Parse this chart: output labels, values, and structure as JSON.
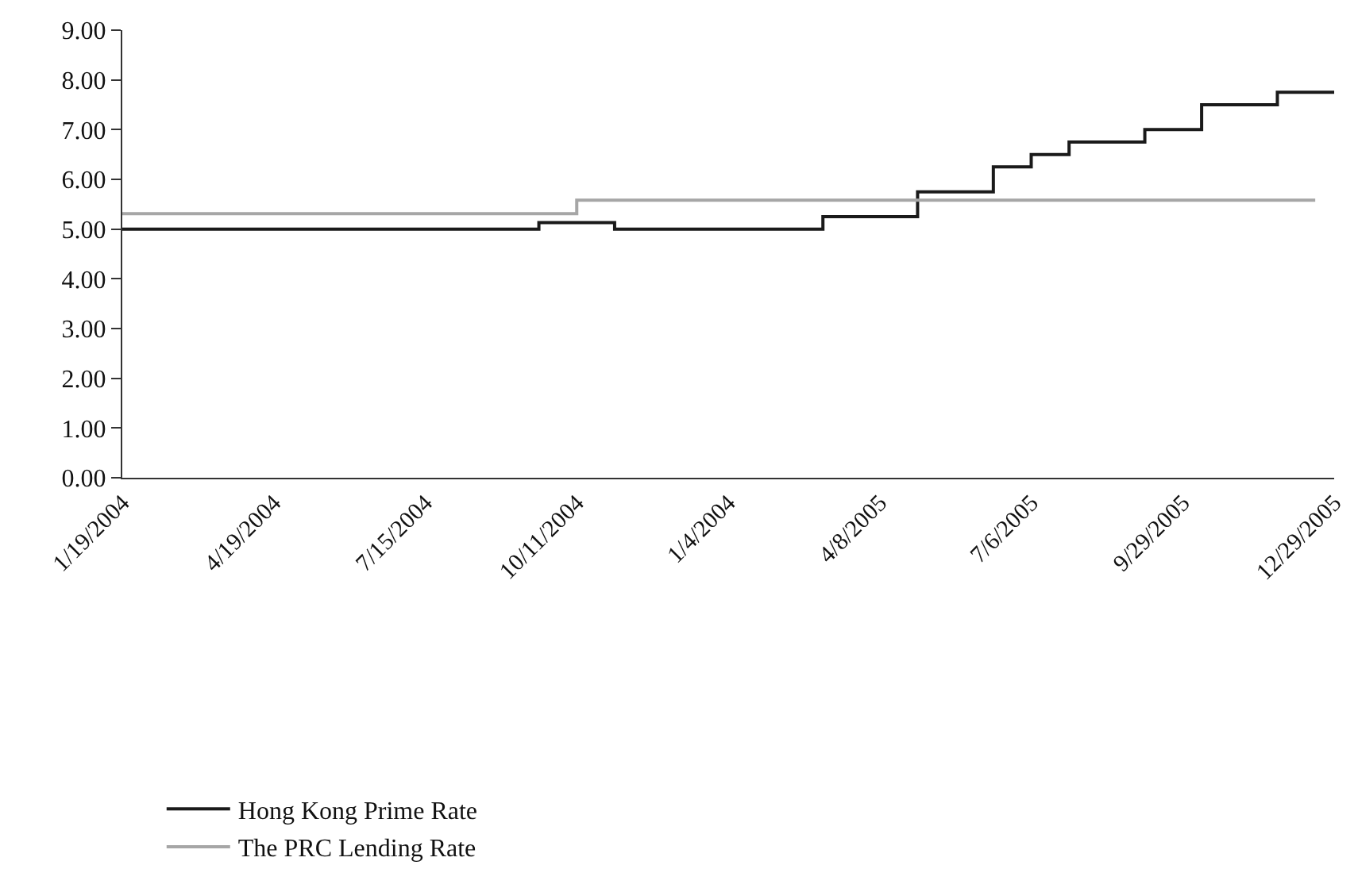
{
  "chart_data": {
    "type": "step",
    "categories": [
      "1/19/2004",
      null,
      null,
      null,
      null,
      null,
      null,
      null,
      "4/19/2004",
      null,
      null,
      null,
      null,
      null,
      null,
      null,
      "7/15/2004",
      null,
      null,
      null,
      null,
      null,
      null,
      null,
      "10/11/2004",
      null,
      null,
      null,
      null,
      null,
      null,
      null,
      "1/4/2004",
      null,
      null,
      null,
      null,
      null,
      null,
      null,
      "4/8/2005",
      null,
      null,
      null,
      null,
      null,
      null,
      null,
      "7/6/2005",
      null,
      null,
      null,
      null,
      null,
      null,
      null,
      "9/29/2005",
      null,
      null,
      null,
      null,
      null,
      null,
      null,
      "12/29/2005"
    ],
    "series": [
      {
        "name": "Hong Kong Prime Rate",
        "color": "#1a1a1a",
        "values": [
          5.0,
          5.0,
          5.0,
          5.0,
          5.0,
          5.0,
          5.0,
          5.0,
          5.0,
          5.0,
          5.0,
          5.0,
          5.0,
          5.0,
          5.0,
          5.0,
          5.0,
          5.0,
          5.0,
          5.0,
          5.0,
          5.0,
          5.13,
          5.13,
          5.13,
          5.13,
          5.0,
          5.0,
          5.0,
          5.0,
          5.0,
          5.0,
          5.0,
          5.0,
          5.0,
          5.0,
          5.0,
          5.25,
          5.25,
          5.25,
          5.25,
          5.25,
          5.75,
          5.75,
          5.75,
          5.75,
          6.25,
          6.25,
          6.5,
          6.5,
          6.75,
          6.75,
          6.75,
          6.75,
          7.0,
          7.0,
          7.0,
          7.5,
          7.5,
          7.5,
          7.5,
          7.75,
          7.75,
          7.75,
          7.75
        ]
      },
      {
        "name": "The PRC Lending Rate",
        "color": "#a6a6a6",
        "values": [
          5.31,
          5.31,
          5.31,
          5.31,
          5.31,
          5.31,
          5.31,
          5.31,
          5.31,
          5.31,
          5.31,
          5.31,
          5.31,
          5.31,
          5.31,
          5.31,
          5.31,
          5.31,
          5.31,
          5.31,
          5.31,
          5.31,
          5.31,
          5.31,
          5.58,
          5.58,
          5.58,
          5.58,
          5.58,
          5.58,
          5.58,
          5.58,
          5.58,
          5.58,
          5.58,
          5.58,
          5.58,
          5.58,
          5.58,
          5.58,
          5.58,
          5.58,
          5.58,
          5.58,
          5.58,
          5.58,
          5.58,
          5.58,
          5.58,
          5.58,
          5.58,
          5.58,
          5.58,
          5.58,
          5.58,
          5.58,
          5.58,
          5.58,
          5.58,
          5.58,
          5.58,
          5.58,
          5.58,
          5.58,
          null
        ]
      }
    ],
    "ylim": [
      0,
      9
    ],
    "yticks": [
      {
        "value": 0,
        "label": "0.00"
      },
      {
        "value": 1,
        "label": "1.00"
      },
      {
        "value": 2,
        "label": "2.00"
      },
      {
        "value": 3,
        "label": "3.00"
      },
      {
        "value": 4,
        "label": "4.00"
      },
      {
        "value": 5,
        "label": "5.00"
      },
      {
        "value": 6,
        "label": "6.00"
      },
      {
        "value": 7,
        "label": "7.00"
      },
      {
        "value": 8,
        "label": "8.00"
      },
      {
        "value": 9,
        "label": "9.00"
      }
    ],
    "legend": "bottom",
    "marker": "none",
    "line_style": "solid"
  }
}
